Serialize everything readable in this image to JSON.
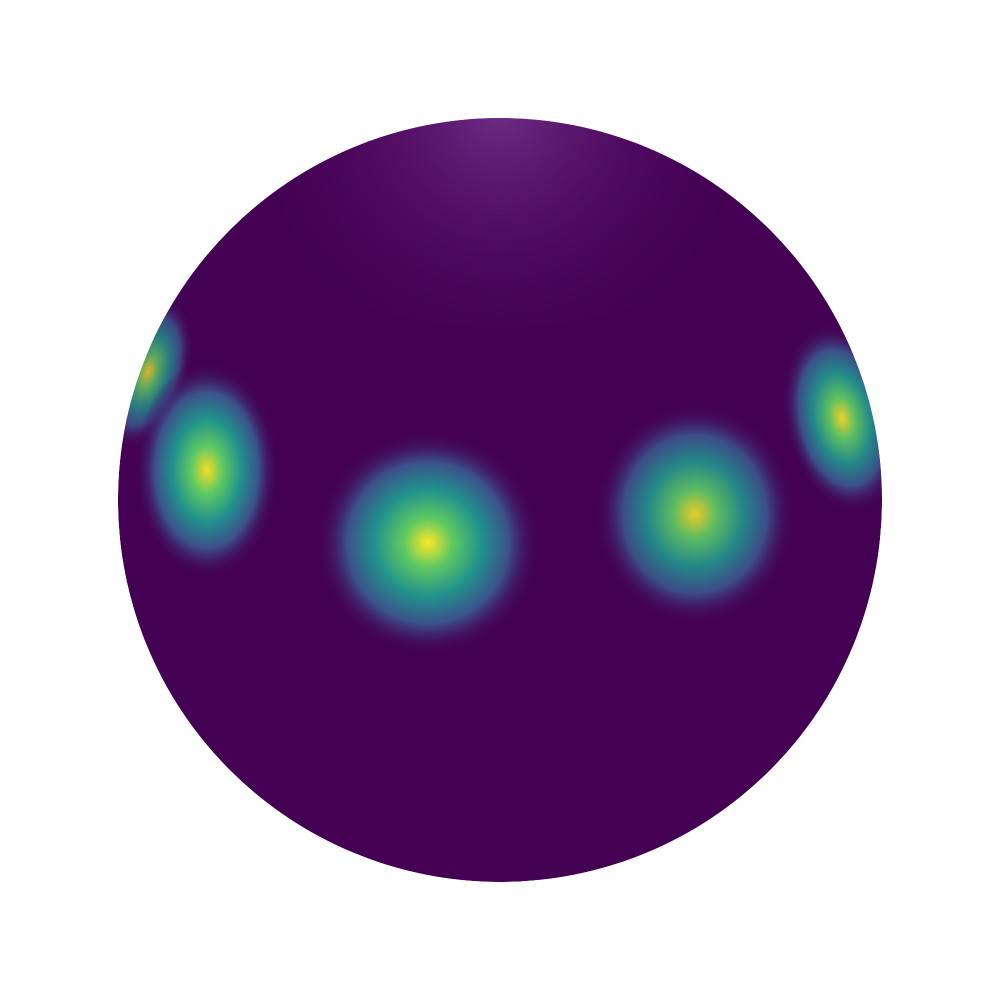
{
  "scene": {
    "background_color": "#ffffff",
    "sphere_base_color": "#440154",
    "highlight_color": "#6f2d87",
    "colormap": [
      "#440154",
      "#3b528b",
      "#21918c",
      "#5ec962",
      "#fde725"
    ],
    "blob_count": 5,
    "blob_intensity": [
      0.78,
      0.95,
      1.0,
      0.88,
      0.9
    ]
  }
}
